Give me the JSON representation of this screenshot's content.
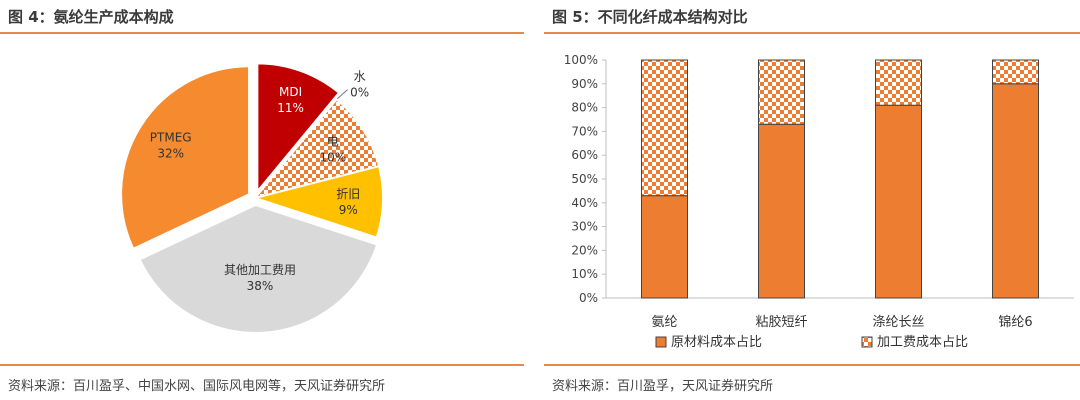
{
  "figures": [
    {
      "title": "图 4：氨纶生产成本构成",
      "source": "资料来源：百川盈孚、中国水网、国际风电网等，天风证券研究所"
    },
    {
      "title": "图 5：不同化纤成本结构对比",
      "source": "资料来源：百川盈孚，天风证券研究所"
    }
  ],
  "chart_data": [
    {
      "type": "pie",
      "title": "",
      "slices": [
        {
          "label": "MDI",
          "value": 11,
          "display": "11%",
          "color": "#c00000",
          "pattern": "none",
          "explode": true
        },
        {
          "label": "水",
          "value": 0,
          "display": "0%",
          "color": "#dddddd",
          "pattern": "none",
          "explode": false
        },
        {
          "label": "电",
          "value": 10,
          "display": "10%",
          "color": "#f4b183",
          "pattern": "checker",
          "explode": false
        },
        {
          "label": "折旧",
          "value": 9,
          "display": "9%",
          "color": "#ffc000",
          "pattern": "none",
          "explode": false
        },
        {
          "label": "其他加工费用",
          "value": 38,
          "display": "38%",
          "color": "#d9d9d9",
          "pattern": "none",
          "explode": true
        },
        {
          "label": "PTMEG",
          "value": 32,
          "display": "32%",
          "color": "#f58a2e",
          "pattern": "none",
          "explode": true
        }
      ]
    },
    {
      "type": "bar",
      "stacked": true,
      "title": "",
      "categories": [
        "氨纶",
        "粘胶短纤",
        "涤纶长丝",
        "锦纶6"
      ],
      "series": [
        {
          "name": "原材料成本占比",
          "values": [
            43,
            73,
            81,
            90
          ],
          "color": "#ed7d31",
          "pattern": "solid"
        },
        {
          "name": "加工费成本占比",
          "values": [
            57,
            27,
            19,
            10
          ],
          "color": "#ed7d31",
          "pattern": "checker"
        }
      ],
      "ylim": [
        0,
        100
      ],
      "yticks": [
        "0%",
        "10%",
        "20%",
        "30%",
        "40%",
        "50%",
        "60%",
        "70%",
        "80%",
        "90%",
        "100%"
      ],
      "legend": "bottom",
      "grid": false
    }
  ]
}
